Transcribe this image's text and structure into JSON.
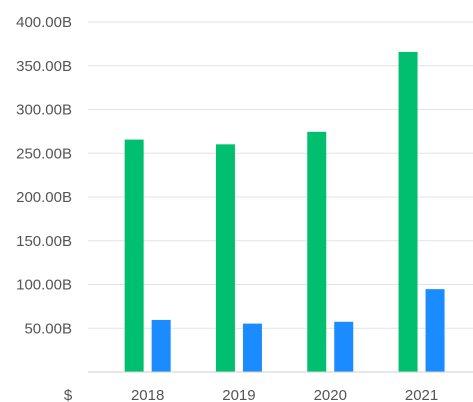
{
  "chart_data": {
    "type": "bar",
    "title": "",
    "xlabel": "",
    "ylabel": "",
    "currency_symbol": "$",
    "categories": [
      "2018",
      "2019",
      "2020",
      "2021"
    ],
    "series": [
      {
        "values": [
          265.6,
          260.2,
          274.5,
          365.8
        ],
        "color": "#00c06f"
      },
      {
        "values": [
          59.5,
          55.3,
          57.4,
          94.7
        ],
        "color": "#1a8cff"
      }
    ],
    "ylim": [
      0,
      400
    ],
    "yticks": [
      {
        "value": 50,
        "label": "50.00B"
      },
      {
        "value": 100,
        "label": "100.00B"
      },
      {
        "value": 150,
        "label": "150.00B"
      },
      {
        "value": 200,
        "label": "200.00B"
      },
      {
        "value": 250,
        "label": "250.00B"
      },
      {
        "value": 300,
        "label": "300.00B"
      },
      {
        "value": 350,
        "label": "350.00B"
      },
      {
        "value": 400,
        "label": "400.00B"
      }
    ],
    "grid": true,
    "legend": "none"
  }
}
